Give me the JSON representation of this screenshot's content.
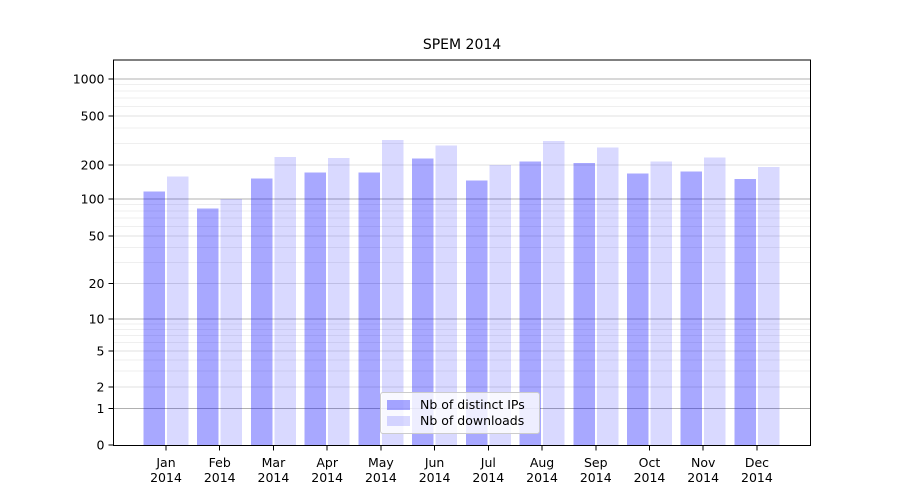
{
  "chart_data": {
    "type": "bar",
    "title": "SPEM 2014",
    "categories": [
      "Jan 2014",
      "Feb 2014",
      "Mar 2014",
      "Apr 2014",
      "May 2014",
      "Jun 2014",
      "Jul 2014",
      "Aug 2014",
      "Sep 2014",
      "Oct 2014",
      "Nov 2014",
      "Dec 2014"
    ],
    "series": [
      {
        "name": "Nb of distinct IPs",
        "color": "rgba(0,0,255,0.34)",
        "values": [
          116,
          84,
          152,
          172,
          172,
          226,
          146,
          214,
          208,
          169,
          176,
          150
        ]
      },
      {
        "name": "Nb of downloads",
        "color": "rgba(0,0,255,0.15)",
        "values": [
          158,
          100,
          232,
          228,
          320,
          288,
          200,
          312,
          278,
          213,
          230,
          192
        ]
      }
    ],
    "xlabel": "",
    "ylabel": "",
    "yscale": "log-like",
    "ylim": [
      0,
      1400
    ],
    "yticks": [
      1000,
      500,
      200,
      100,
      50,
      20,
      10,
      5,
      2,
      1,
      0
    ],
    "grid": "horizontal, major and minor",
    "legend_position": "lower center",
    "colors": {
      "distinct_ips_bar": "#a8a8ff",
      "downloads_bar": "#d9d9ff",
      "major_gridline": "#b0b0b0",
      "mid_gridline": "#e0e0e0",
      "minor_gridline": "#efefef",
      "axis": "#000000"
    }
  }
}
